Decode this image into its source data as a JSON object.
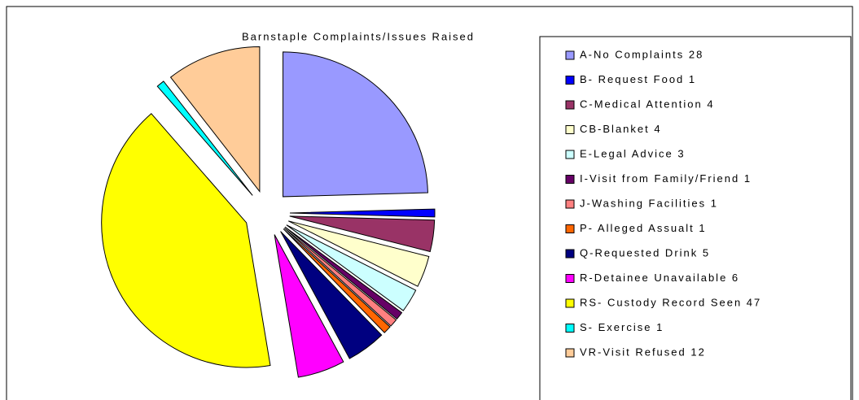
{
  "chart_data": {
    "type": "pie",
    "title": "Barnstaple Complaints/Issues Raised",
    "categories": [
      "A-No Complaints 28",
      "B- Request Food 1",
      "C-Medical Attention 4",
      "CB-Blanket 4",
      "E-Legal Advice 3",
      "I-Visit from Family/Friend 1",
      "J-Washing Facilities 1",
      "P- Alleged Assualt 1",
      "Q-Requested Drink 5",
      "R-Detainee Unavailable 6",
      "RS- Custody Record Seen 47",
      "S- Exercise 1",
      "VR-Visit Refused 12"
    ],
    "values": [
      28,
      1,
      4,
      4,
      3,
      1,
      1,
      1,
      5,
      6,
      47,
      1,
      12
    ],
    "colors": [
      "#9999ff",
      "#0000ff",
      "#993366",
      "#ffffcc",
      "#ccffff",
      "#660066",
      "#ff8080",
      "#ff6600",
      "#000080",
      "#ff00ff",
      "#ffff00",
      "#00ffff",
      "#ffcc99"
    ],
    "legend": "right"
  }
}
